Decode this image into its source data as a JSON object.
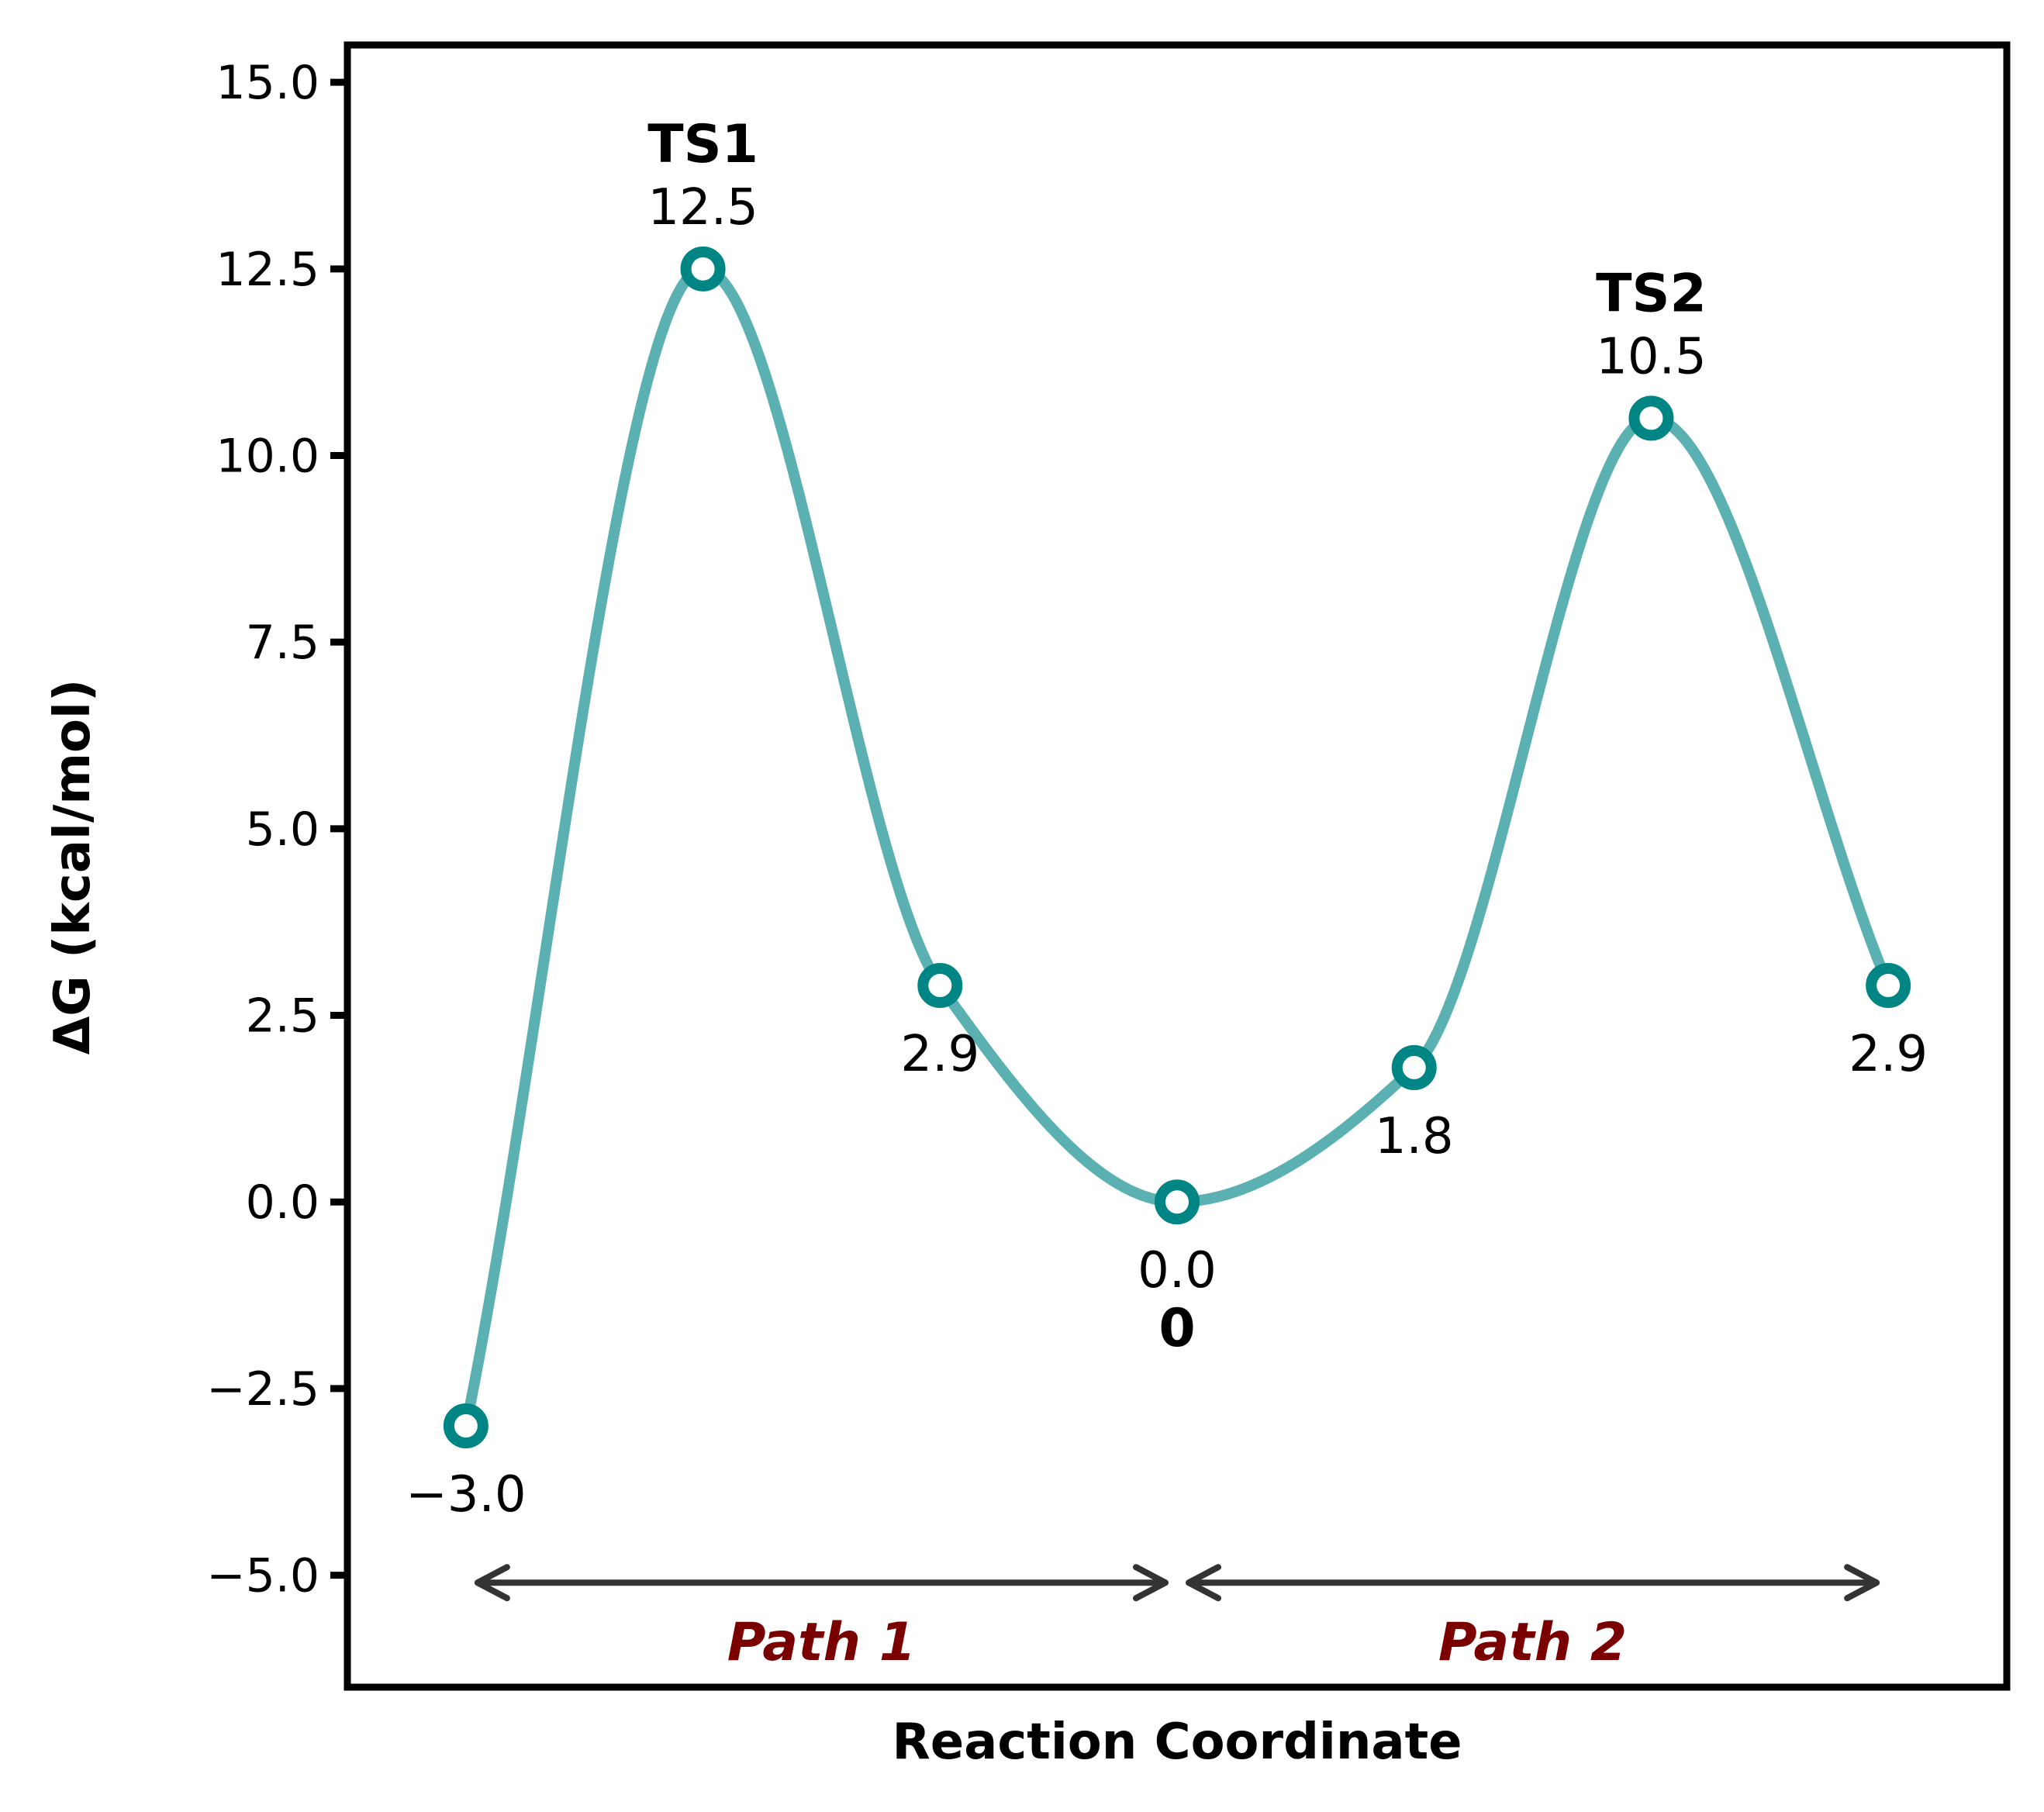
{
  "chart_data": {
    "type": "line",
    "title": "",
    "xlabel": "Reaction Coordinate",
    "ylabel": "ΔG (kcal/mol)",
    "ylim": [
      -6.5,
      15.5
    ],
    "yticks": [
      -5.0,
      -2.5,
      0.0,
      2.5,
      5.0,
      7.5,
      10.0,
      12.5,
      15.0
    ],
    "ytick_labels": [
      "−5.0",
      "−2.5",
      "0.0",
      "2.5",
      "5.0",
      "7.5",
      "10.0",
      "12.5",
      "15.0"
    ],
    "x_ticks_shown": false,
    "grid": false,
    "series": [
      {
        "points": [
          {
            "x": -3,
            "y": -3.0,
            "value_label": "−3.0",
            "name": ""
          },
          {
            "x": -2,
            "y": 12.5,
            "value_label": "12.5",
            "name": "TS1"
          },
          {
            "x": -1,
            "y": 2.9,
            "value_label": "2.9",
            "name": ""
          },
          {
            "x": 0,
            "y": 0.0,
            "value_label": "0.0",
            "name": "0"
          },
          {
            "x": 1,
            "y": 1.8,
            "value_label": "1.8",
            "name": ""
          },
          {
            "x": 2,
            "y": 10.5,
            "value_label": "10.5",
            "name": "TS2"
          },
          {
            "x": 3,
            "y": 2.9,
            "value_label": "2.9",
            "name": ""
          }
        ]
      }
    ],
    "annotations": [
      {
        "label": "Path 1",
        "from_x": -3,
        "to_x": 0,
        "y": -5.1
      },
      {
        "label": "Path 2",
        "from_x": 0,
        "to_x": 3,
        "y": -5.1
      }
    ]
  },
  "colors": {
    "curve": "#5bb1b1",
    "marker": "#008585",
    "arrow": "#333333",
    "path_label": "#7a0000",
    "frame": "#000000"
  }
}
